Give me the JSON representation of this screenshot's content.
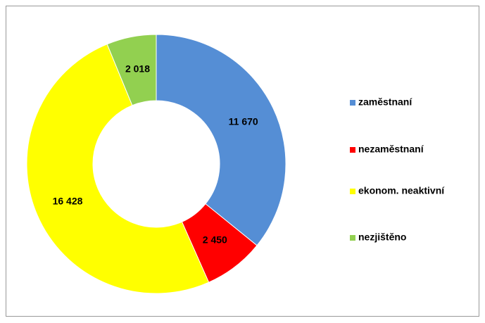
{
  "chart_data": {
    "type": "donut",
    "categories": [
      "zaměstnaní",
      "nezaměstnaní",
      "ekonom. neaktivní",
      "nezjištěno"
    ],
    "values": [
      11670,
      2450,
      16428,
      2018
    ],
    "value_labels": [
      "11 670",
      "2 450",
      "16 428",
      "2 018"
    ],
    "colors": [
      "#558ed5",
      "#ff0000",
      "#ffff00",
      "#92d050"
    ],
    "legend": "right"
  }
}
